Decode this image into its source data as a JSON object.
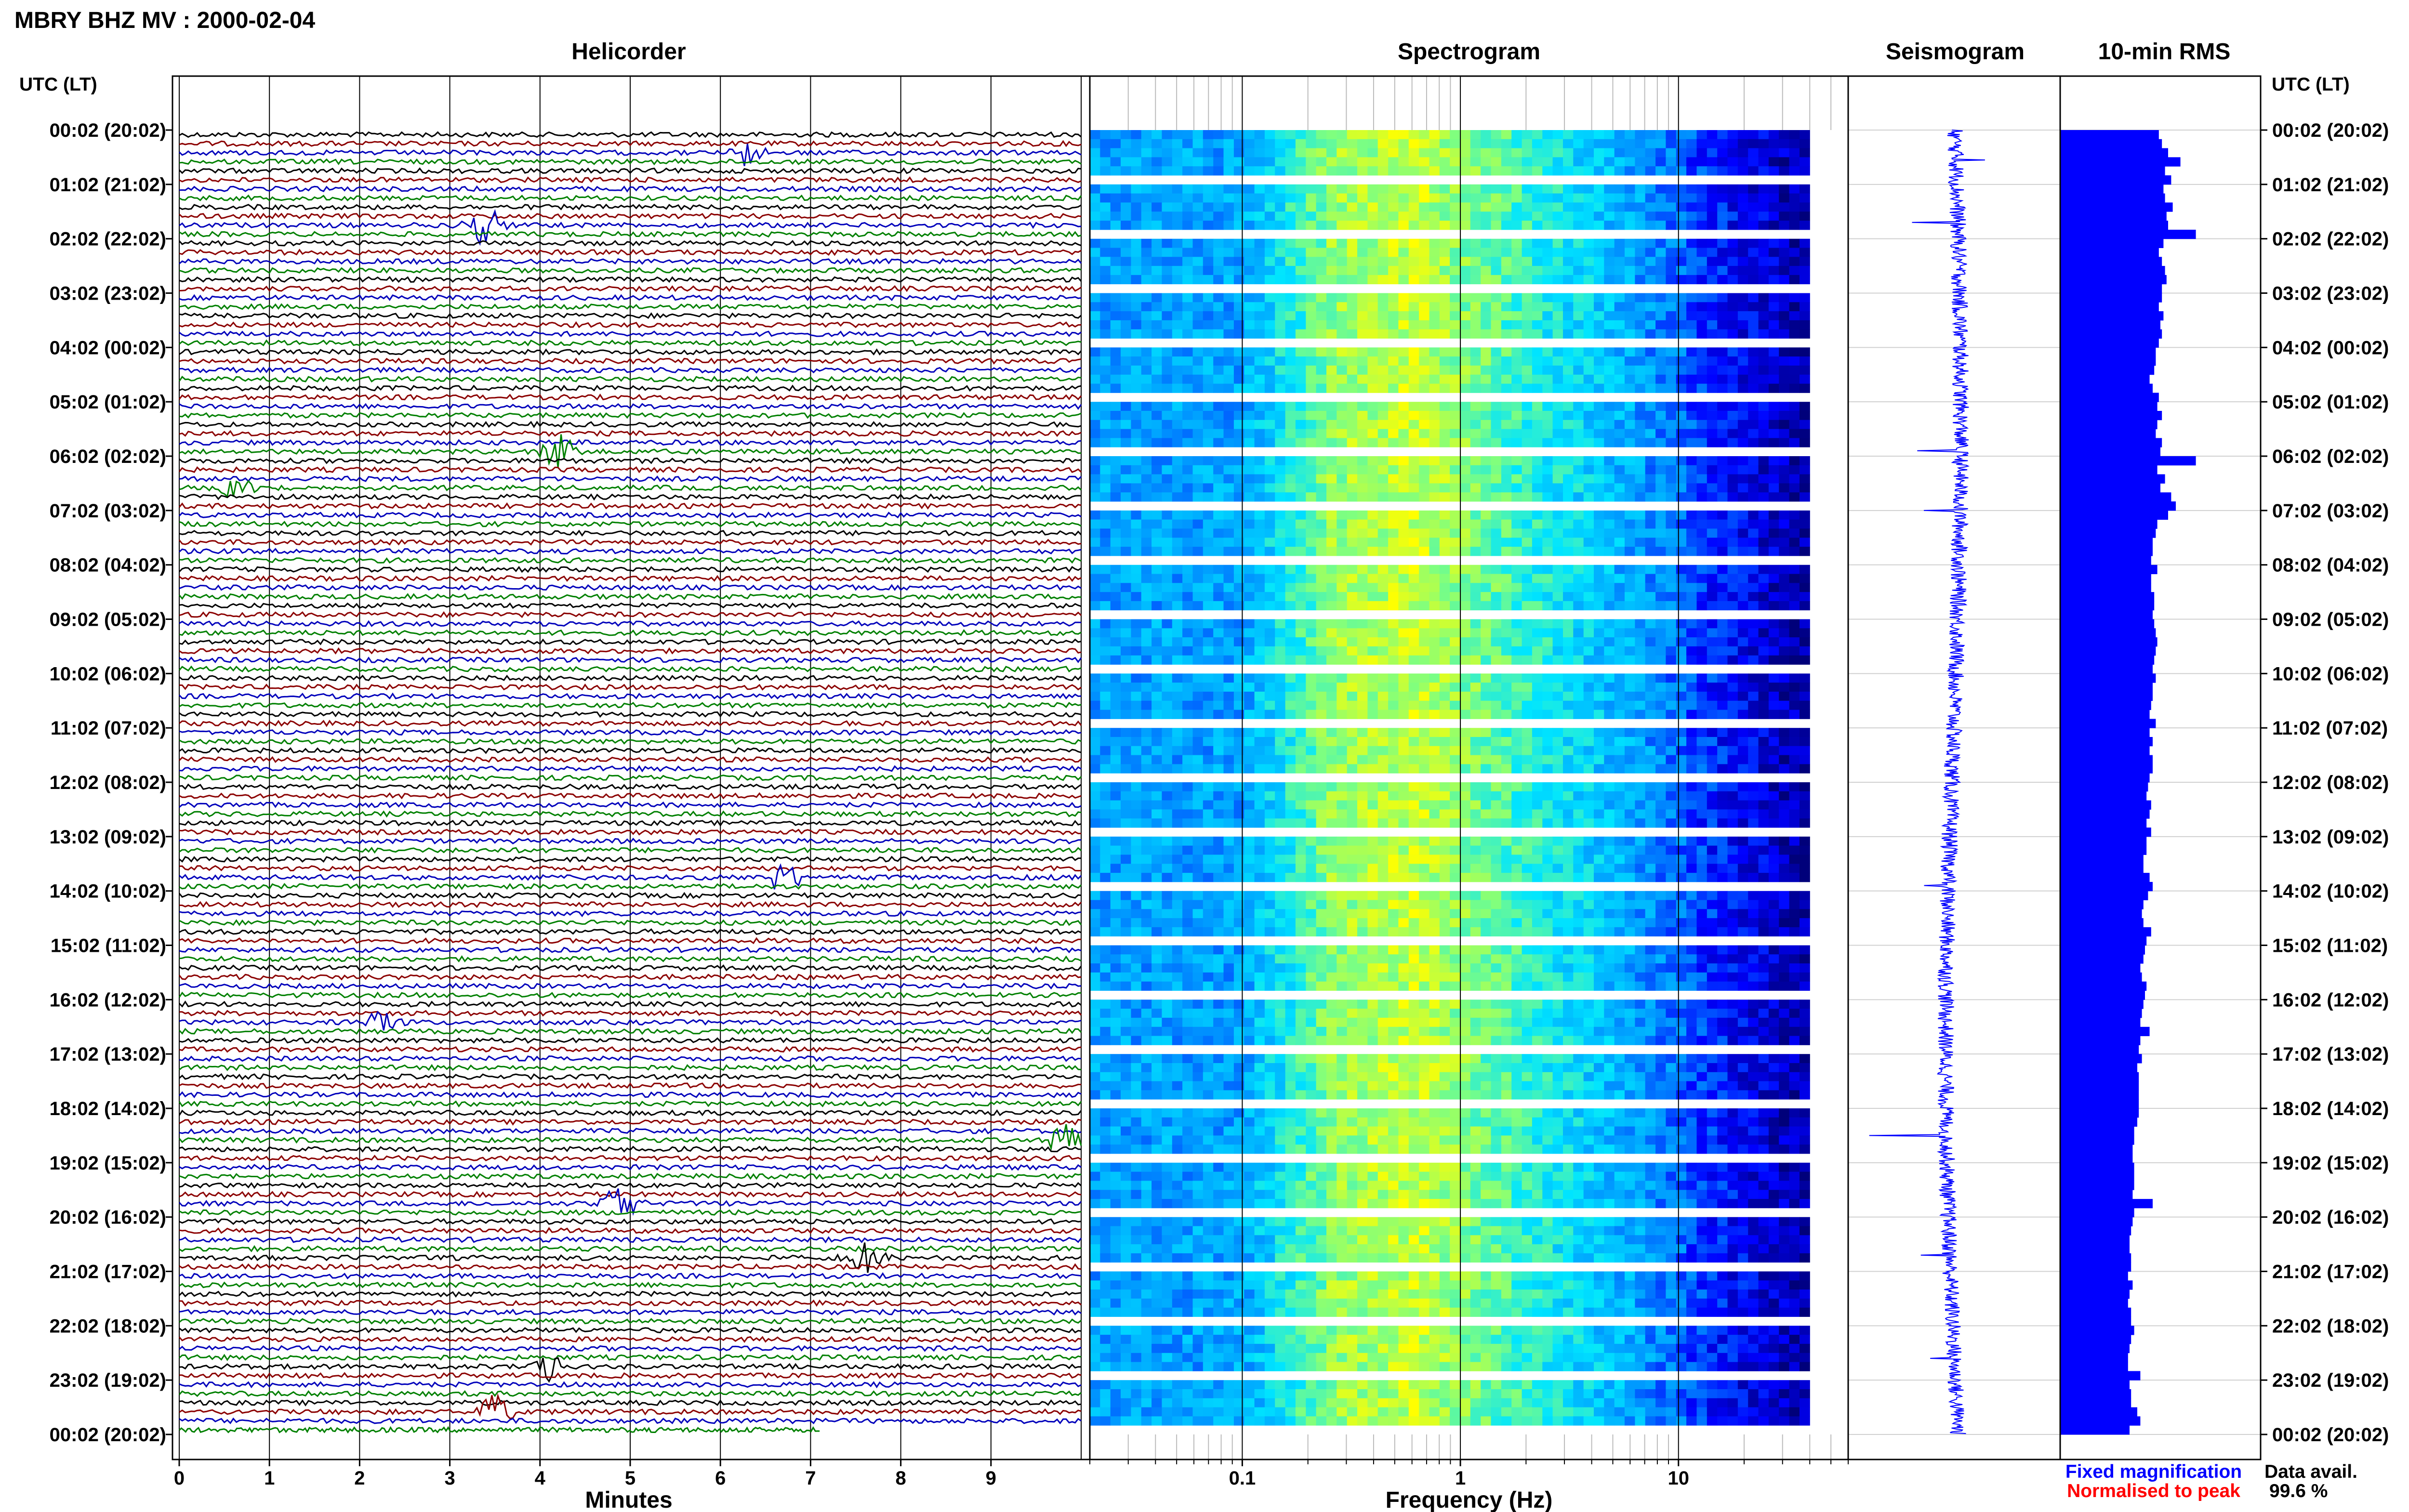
{
  "header": {
    "title": "MBRY BHZ MV : 2000-02-04",
    "utc_label_left": "UTC (LT)",
    "utc_label_right": "UTC (LT)"
  },
  "panels": {
    "helicorder": "Helicorder",
    "spectrogram": "Spectrogram",
    "seismogram": "Seismogram",
    "rms": "10-min RMS"
  },
  "legend": {
    "fixed": "Fixed magnification",
    "normalised": "Normalised to peak",
    "fixed_color": "#0000ff",
    "normalised_color": "#ff0000"
  },
  "data_availability": {
    "label": "Data avail.",
    "value": "99.6 %"
  },
  "colors": {
    "trace_cycle": [
      "#000000",
      "#8b0000",
      "#0000bb",
      "#008000"
    ],
    "spectrogram_ramp": [
      "#00007a",
      "#0000ff",
      "#0090ff",
      "#00e5ff",
      "#7fff7f",
      "#ffff00"
    ],
    "rms_bar": "#0000ff",
    "seismogram": "#0000ff"
  },
  "chart_data": [
    {
      "type": "line",
      "panel": "helicorder",
      "title": "Helicorder",
      "xlabel": "Minutes",
      "xlim": [
        0,
        10
      ],
      "x_ticks": [
        "0",
        "1",
        "2",
        "3",
        "4",
        "5",
        "6",
        "7",
        "8",
        "9"
      ],
      "row_minutes": 10,
      "rows": 144,
      "y_tick_labels": [
        "00:02 (20:02)",
        "01:02 (21:02)",
        "02:02 (22:02)",
        "03:02 (23:02)",
        "04:02 (00:02)",
        "05:02 (01:02)",
        "06:02 (02:02)",
        "07:02 (03:02)",
        "08:02 (04:02)",
        "09:02 (05:02)",
        "10:02 (06:02)",
        "11:02 (07:02)",
        "12:02 (08:02)",
        "13:02 (09:02)",
        "14:02 (10:02)",
        "15:02 (11:02)",
        "16:02 (12:02)",
        "17:02 (13:02)",
        "18:02 (14:02)",
        "19:02 (15:02)",
        "20:02 (16:02)",
        "21:02 (17:02)",
        "22:02 (18:02)",
        "23:02 (19:02)",
        "00:02 (20:02)"
      ],
      "events": [
        {
          "row": 2,
          "minute": 6.3,
          "strength": 1.0
        },
        {
          "row": 10,
          "minute": 3.4,
          "strength": 1.3
        },
        {
          "row": 35,
          "minute": 4.2,
          "strength": 1.2
        },
        {
          "row": 39,
          "minute": 0.6,
          "strength": 1.1
        },
        {
          "row": 82,
          "minute": 6.7,
          "strength": 1.0
        },
        {
          "row": 98,
          "minute": 2.3,
          "strength": 0.9
        },
        {
          "row": 111,
          "minute": 9.8,
          "strength": 0.9
        },
        {
          "row": 118,
          "minute": 4.9,
          "strength": 1.4
        },
        {
          "row": 124,
          "minute": 7.6,
          "strength": 1.1
        },
        {
          "row": 136,
          "minute": 4.1,
          "strength": 0.9
        },
        {
          "row": 141,
          "minute": 3.5,
          "strength": 1.1
        }
      ]
    },
    {
      "type": "heatmap",
      "panel": "spectrogram",
      "title": "Spectrogram",
      "xlabel": "Frequency (Hz)",
      "x_scale": "log",
      "xlim": [
        0.02,
        60
      ],
      "x_ticks": [
        0.1,
        1,
        10
      ],
      "x_tick_labels": [
        "0.1",
        "1",
        "10"
      ],
      "data_fmax": 40
    },
    {
      "type": "line",
      "panel": "seismogram",
      "title": "Seismogram",
      "spikes": [
        {
          "hour": 0.55,
          "amp": 0.6
        },
        {
          "hour": 1.7,
          "amp": 0.95
        },
        {
          "hour": 5.9,
          "amp": 0.9
        },
        {
          "hour": 7.0,
          "amp": 0.75
        },
        {
          "hour": 13.9,
          "amp": 0.5
        },
        {
          "hour": 18.5,
          "amp": 1.6
        },
        {
          "hour": 20.7,
          "amp": 0.6
        },
        {
          "hour": 22.6,
          "amp": 0.5
        }
      ]
    },
    {
      "type": "bar",
      "panel": "rms",
      "title": "10-min RMS",
      "orientation": "horizontal",
      "values": [
        64,
        66,
        70,
        78,
        68,
        72,
        67,
        68,
        73,
        69,
        70,
        88,
        67,
        64,
        66,
        68,
        69,
        66,
        66,
        64,
        67,
        65,
        66,
        64,
        62,
        62,
        61,
        58,
        60,
        64,
        63,
        66,
        63,
        62,
        66,
        65,
        88,
        63,
        68,
        65,
        72,
        75,
        70,
        63,
        62,
        60,
        60,
        59,
        63,
        59,
        59,
        61,
        61,
        60,
        61,
        62,
        63,
        62,
        61,
        60,
        62,
        60,
        60,
        59,
        58,
        62,
        58,
        60,
        58,
        60,
        60,
        58,
        57,
        56,
        59,
        58,
        56,
        59,
        56,
        56,
        54,
        54,
        58,
        60,
        57,
        54,
        53,
        54,
        59,
        56,
        55,
        54,
        52,
        53,
        56,
        55,
        54,
        53,
        52,
        58,
        52,
        51,
        53,
        50,
        51,
        51,
        51,
        51,
        51,
        50,
        48,
        48,
        47,
        47,
        48,
        48,
        48,
        47,
        60,
        48,
        47,
        46,
        45,
        45,
        46,
        46,
        44,
        47,
        45,
        44,
        46,
        46,
        48,
        46,
        45,
        44,
        44,
        52,
        45,
        46,
        46,
        50,
        52,
        45
      ]
    }
  ]
}
